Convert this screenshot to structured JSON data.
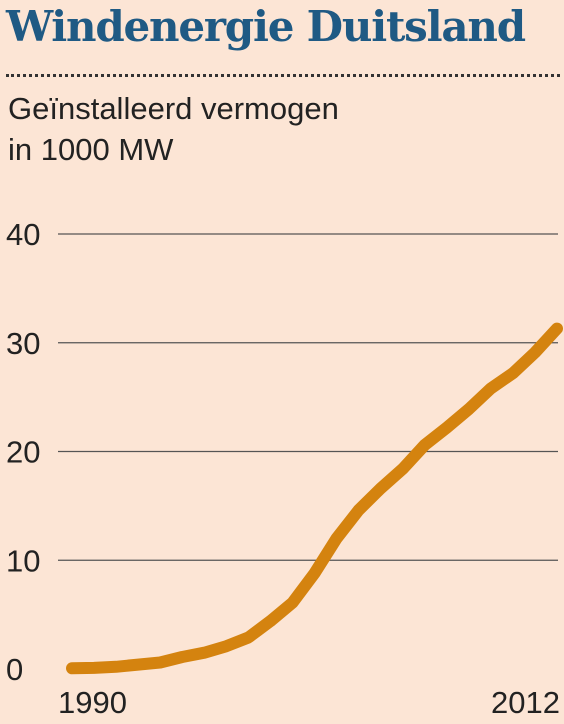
{
  "title": "Windenergie Duitsland",
  "subtitle_line1": "Geïnstalleerd vermogen",
  "subtitle_line2": "in 1000 MW",
  "chart_data": {
    "type": "line",
    "title": "Windenergie Duitsland",
    "ylabel": "Geïnstalleerd vermogen in 1000 MW",
    "xlabel": "",
    "x_tick_labels": [
      "1990",
      "2012"
    ],
    "y_ticks": [
      0,
      10,
      20,
      30,
      40
    ],
    "xlim": [
      1990,
      2012
    ],
    "ylim": [
      0,
      40
    ],
    "grid": "horizontal",
    "series": [
      {
        "color": "#d4830f",
        "x": [
          1990,
          1991,
          1992,
          1993,
          1994,
          1995,
          1996,
          1997,
          1998,
          1999,
          2000,
          2001,
          2002,
          2003,
          2004,
          2005,
          2006,
          2007,
          2008,
          2009,
          2010,
          2011,
          2012
        ],
        "y": [
          0.06,
          0.1,
          0.2,
          0.4,
          0.6,
          1.1,
          1.5,
          2.1,
          2.9,
          4.4,
          6.1,
          8.8,
          12.0,
          14.6,
          16.6,
          18.4,
          20.6,
          22.2,
          23.9,
          25.8,
          27.2,
          29.1,
          31.3
        ]
      }
    ]
  }
}
